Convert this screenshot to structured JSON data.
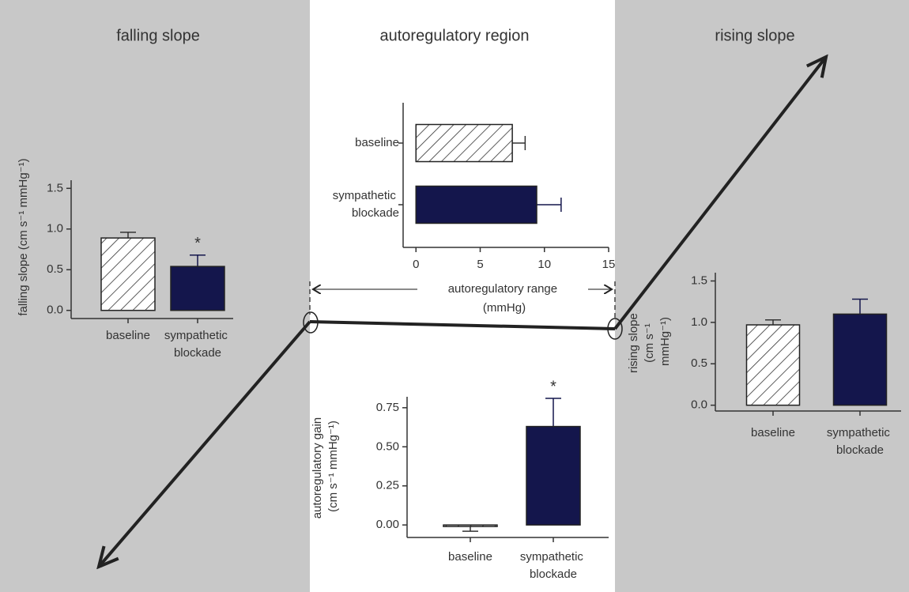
{
  "chart_data": [
    {
      "type": "bar",
      "title": "falling slope",
      "y_label": "falling slope (cm s⁻¹ mmHg⁻¹)",
      "categories": [
        "baseline",
        "sympathetic blockade"
      ],
      "values": [
        0.89,
        0.54
      ],
      "errors": [
        0.07,
        0.14
      ],
      "value_annotations": [
        null,
        "*"
      ],
      "bar_fills": [
        "hatched",
        "solid"
      ],
      "color": "#14164c",
      "ylim": [
        -0.1,
        1.6
      ],
      "yticks": [
        {
          "value": 0,
          "label": "0.0"
        },
        0.5,
        {
          "value": 1,
          "label": "1.0"
        },
        1.5
      ]
    },
    {
      "type": "bar",
      "orientation": "horizontal",
      "title": "autoregulatory region",
      "x_label": "autoregulatory range (mmHg)",
      "categories": [
        "baseline",
        "sympathetic blockade"
      ],
      "values": [
        7.5,
        9.4
      ],
      "errors": [
        1.0,
        1.9
      ],
      "bar_fills": [
        "hatched",
        "solid"
      ],
      "color": "#14164c",
      "xlim": [
        -1,
        15
      ],
      "xticks": [
        0,
        5,
        10,
        15
      ]
    },
    {
      "type": "bar",
      "y_label": "autoregulatory gain (cm s⁻¹ mmHg⁻¹)",
      "categories": [
        "baseline",
        "sympathetic blockade"
      ],
      "values": [
        -0.01,
        0.63
      ],
      "errors": [
        0.03,
        0.18
      ],
      "value_annotations": [
        null,
        "*"
      ],
      "bar_fills": [
        "hatched",
        "solid"
      ],
      "color": "#14164c",
      "ylim": [
        -0.08,
        0.82
      ],
      "yticks": [
        {
          "value": 0,
          "label": "0.00"
        },
        {
          "value": 0.25,
          "label": "0.25"
        },
        {
          "value": 0.5,
          "label": "0.50"
        },
        {
          "value": 0.75,
          "label": "0.75"
        }
      ]
    },
    {
      "type": "bar",
      "title": "rising slope",
      "y_label": "rising slope (cm s⁻¹ mmHg⁻¹)",
      "categories": [
        "baseline",
        "sympathetic blockade"
      ],
      "values": [
        0.97,
        1.1
      ],
      "errors": [
        0.06,
        0.18
      ],
      "bar_fills": [
        "hatched",
        "solid"
      ],
      "color": "#14164c",
      "ylim": [
        -0.07,
        1.6
      ],
      "yticks": [
        {
          "value": 0,
          "label": "0.0"
        },
        0.5,
        {
          "value": 1,
          "label": "1.0"
        },
        1.5
      ]
    }
  ]
}
